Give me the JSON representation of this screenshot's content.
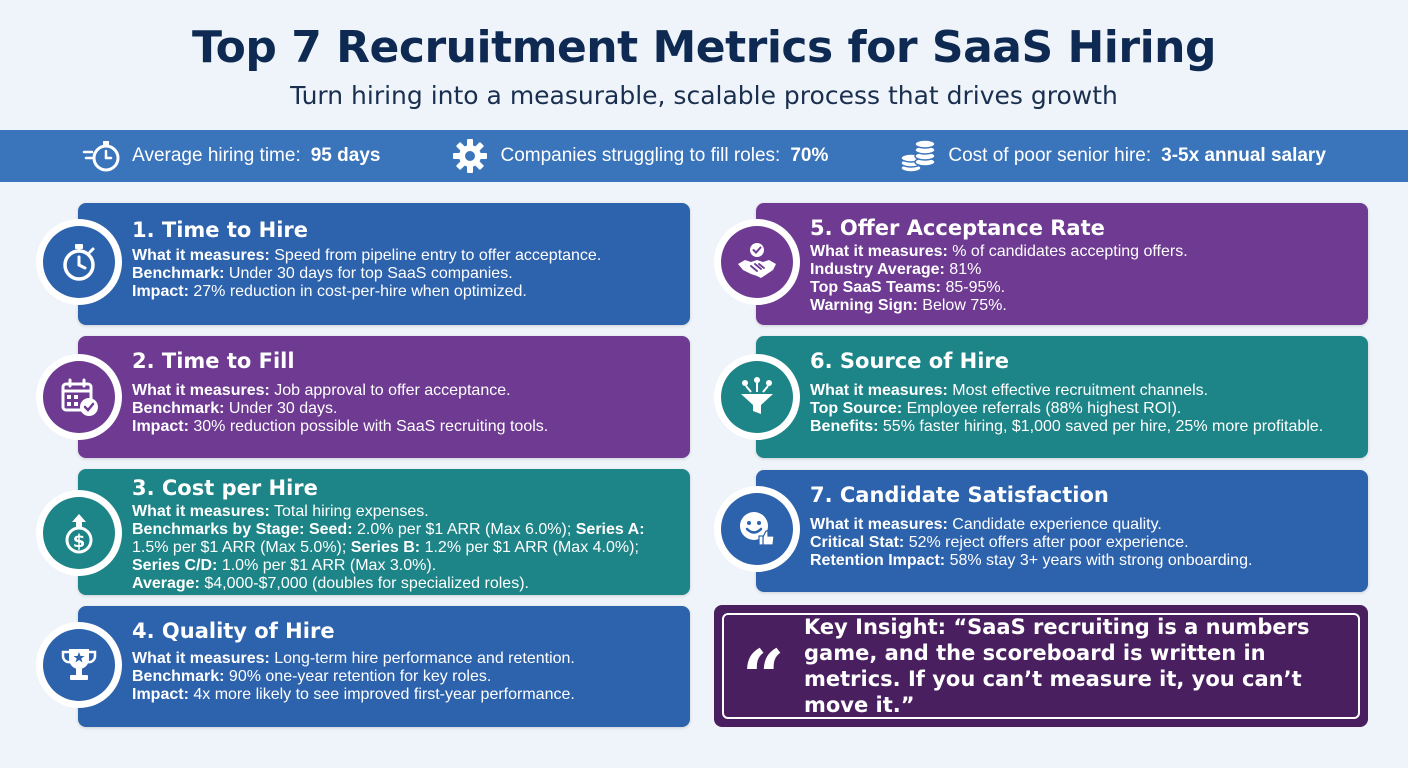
{
  "header": {
    "title": "Top 7 Recruitment Metrics for SaaS Hiring",
    "subtitle": "Turn hiring into a measurable, scalable process that drives growth"
  },
  "stats": [
    {
      "icon": "stopwatch-icon",
      "label": "Average hiring time: ",
      "value": "95 days"
    },
    {
      "icon": "gear-icon",
      "label": "Companies struggling to fill roles: ",
      "value": "70%"
    },
    {
      "icon": "coins-icon",
      "label": "Cost of poor senior hire: ",
      "value": "3-5x annual salary"
    }
  ],
  "metrics": {
    "m1": {
      "title": "1. Time to Hire",
      "icon": "stopwatch-icon",
      "l1k": "What it measures:",
      "l1v": " Speed from pipeline entry to offer acceptance.",
      "l2k": "Benchmark:",
      "l2v": " Under 30 days for top SaaS companies.",
      "l3k": "Impact:",
      "l3v": " 27% reduction in cost-per-hire when optimized."
    },
    "m2": {
      "title": "2. Time to Fill",
      "icon": "calendar-check-icon",
      "l1k": "What it measures:",
      "l1v": " Job approval to offer acceptance.",
      "l2k": "Benchmark:",
      "l2v": " Under 30 days.",
      "l3k": "Impact:",
      "l3v": " 30% reduction possible with SaaS recruiting tools."
    },
    "m3": {
      "title": "3. Cost per Hire",
      "icon": "dollar-growth-icon",
      "l1k": "What it measures:",
      "l1v": " Total hiring expenses.",
      "s1k": "Benchmarks by Stage: Seed:",
      "s1v": " 2.0% per $1 ARR (Max 6.0%);",
      "s2k": " Series A:",
      "s2v": " 1.5% per $1 ARR (Max 5.0%);",
      "s3k": " Series B:",
      "s3v": " 1.2% per $1 ARR (Max 4.0%);",
      "s4k": " Series C/D:",
      "s4v": " 1.0% per $1 ARR (Max 3.0%).",
      "l3k": "Average:",
      "l3v": " $4,000-$7,000 (doubles for specialized roles)."
    },
    "m4": {
      "title": "4. Quality of Hire",
      "icon": "trophy-icon",
      "l1k": "What it measures:",
      "l1v": " Long-term hire performance and retention.",
      "l2k": "Benchmark:",
      "l2v": " 90% one-year retention for key roles.",
      "l3k": "Impact:",
      "l3v": " 4x more likely to see improved first-year performance."
    },
    "m5": {
      "title": "5. Offer Acceptance Rate",
      "icon": "handshake-icon",
      "l1k": "What it measures:",
      "l1v": " % of candidates accepting offers.",
      "l2k": "Industry Average:",
      "l2v": " 81%",
      "l3k": "Top SaaS Teams:",
      "l3v": " 85-95%.",
      "l4k": "Warning Sign:",
      "l4v": " Below 75%."
    },
    "m6": {
      "title": "6. Source of Hire",
      "icon": "funnel-icon",
      "l1k": "What it measures:",
      "l1v": " Most effective recruitment channels.",
      "l2k": "Top Source:",
      "l2v": " Employee referrals (88% highest ROI).",
      "l3k": "Benefits:",
      "l3v": " 55% faster hiring, $1,000 saved per hire, 25% more profitable."
    },
    "m7": {
      "title": "7. Candidate Satisfaction",
      "icon": "smiley-thumbs-up-icon",
      "l1k": "What it measures:",
      "l1v": " Candidate experience quality.",
      "l2k": "Critical Stat:",
      "l2v": " 52% reject offers after poor experience.",
      "l3k": "Retention Impact:",
      "l3v": " 58% stay 3+ years with strong onboarding."
    }
  },
  "quote": {
    "mark": "“",
    "text": "Key Insight: “SaaS recruiting is a numbers game, and the scoreboard is written in metrics. If you can’t measure it, you can’t move it.”"
  },
  "colors": {
    "blue": "#2d62ad",
    "purple": "#6e3a92",
    "teal": "#1d8487",
    "band": "#3a74bb",
    "quote": "#4a1f60",
    "title": "#0e2a52"
  }
}
